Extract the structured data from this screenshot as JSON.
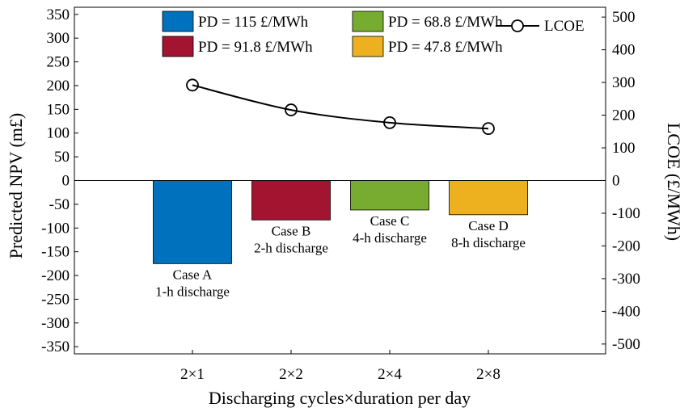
{
  "chart_data": {
    "type": "bar",
    "xlabel": "Discharging cycles×duration per day",
    "ylabel_left": "Predicted NPV (m£)",
    "ylabel_right": "LCOE (£/MWh)",
    "categories": [
      "2×1",
      "2×2",
      "2×4",
      "2×8"
    ],
    "ylim_left": [
      -365,
      365
    ],
    "ylim_right": [
      -530,
      530
    ],
    "yticks_left": [
      350,
      300,
      250,
      200,
      150,
      100,
      50,
      0,
      -50,
      -100,
      -150,
      -200,
      -250,
      -300,
      -350
    ],
    "yticks_right": [
      500,
      400,
      300,
      200,
      100,
      0,
      -100,
      -200,
      -300,
      -400,
      -500
    ],
    "series": [
      {
        "name": "PD = 115 £/MWh",
        "axis": "left",
        "kind": "bar",
        "color": "#0072BD",
        "values": [
          -175,
          null,
          null,
          null
        ]
      },
      {
        "name": "PD = 91.8 £/MWh",
        "axis": "left",
        "kind": "bar",
        "color": "#A2142F",
        "values": [
          null,
          -83,
          null,
          null
        ]
      },
      {
        "name": "PD = 68.8 £/MWh",
        "axis": "left",
        "kind": "bar",
        "color": "#77AC30",
        "values": [
          null,
          null,
          -62,
          null
        ]
      },
      {
        "name": "PD = 47.8 £/MWh",
        "axis": "left",
        "kind": "bar",
        "color": "#EDB120",
        "values": [
          null,
          null,
          null,
          -72
        ]
      },
      {
        "name": "LCOE",
        "axis": "right",
        "kind": "line",
        "marker": "circle",
        "color": "#000000",
        "values": [
          292,
          216,
          177,
          159
        ]
      }
    ],
    "annotations": [
      {
        "line1": "Case A",
        "line2": "1-h discharge"
      },
      {
        "line1": "Case B",
        "line2": "2-h discharge"
      },
      {
        "line1": "Case C",
        "line2": "4-h discharge"
      },
      {
        "line1": "Case D",
        "line2": "8-h discharge"
      }
    ],
    "legend": {
      "placement": "top-right",
      "columns": 3
    },
    "grid": false
  }
}
